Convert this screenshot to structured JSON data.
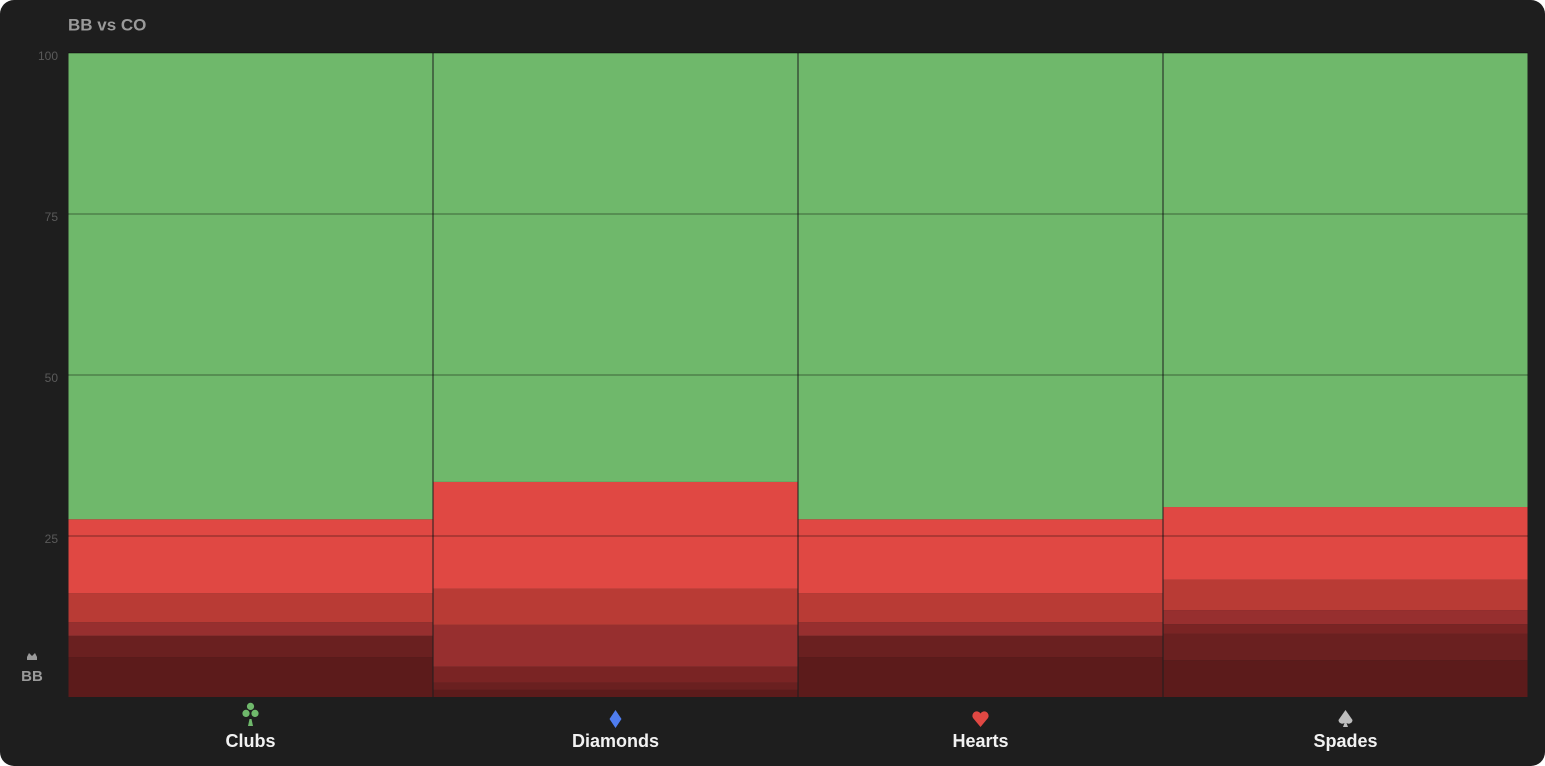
{
  "chart_data": {
    "type": "stacked_bar",
    "title": "BB vs CO",
    "annotation": "BB",
    "categories": [
      "Clubs",
      "Diamonds",
      "Hearts",
      "Spades"
    ],
    "series": [
      {
        "color": "#5c1b1b",
        "values": [
          6.2,
          1.1,
          6.2,
          5.7
        ]
      },
      {
        "color": "#6a2020",
        "values": [
          3.3,
          1.1,
          3.3,
          4.1
        ]
      },
      {
        "color": "#7a2424",
        "values": [
          0,
          2.5,
          0,
          1.5
        ]
      },
      {
        "color": "#972f2f",
        "values": [
          2.1,
          6.5,
          2.1,
          2.2
        ]
      },
      {
        "color": "#b93b35",
        "values": [
          4.5,
          5.6,
          4.5,
          4.7
        ]
      },
      {
        "color": "#e04843",
        "values": [
          11.5,
          16.6,
          11.5,
          11.3
        ]
      },
      {
        "color": "#6fb86b",
        "values": [
          72.4,
          66.6,
          72.4,
          70.5
        ]
      }
    ],
    "ylim": [
      0,
      100
    ],
    "yticks": [
      25,
      50,
      75,
      100
    ],
    "grid": true
  }
}
